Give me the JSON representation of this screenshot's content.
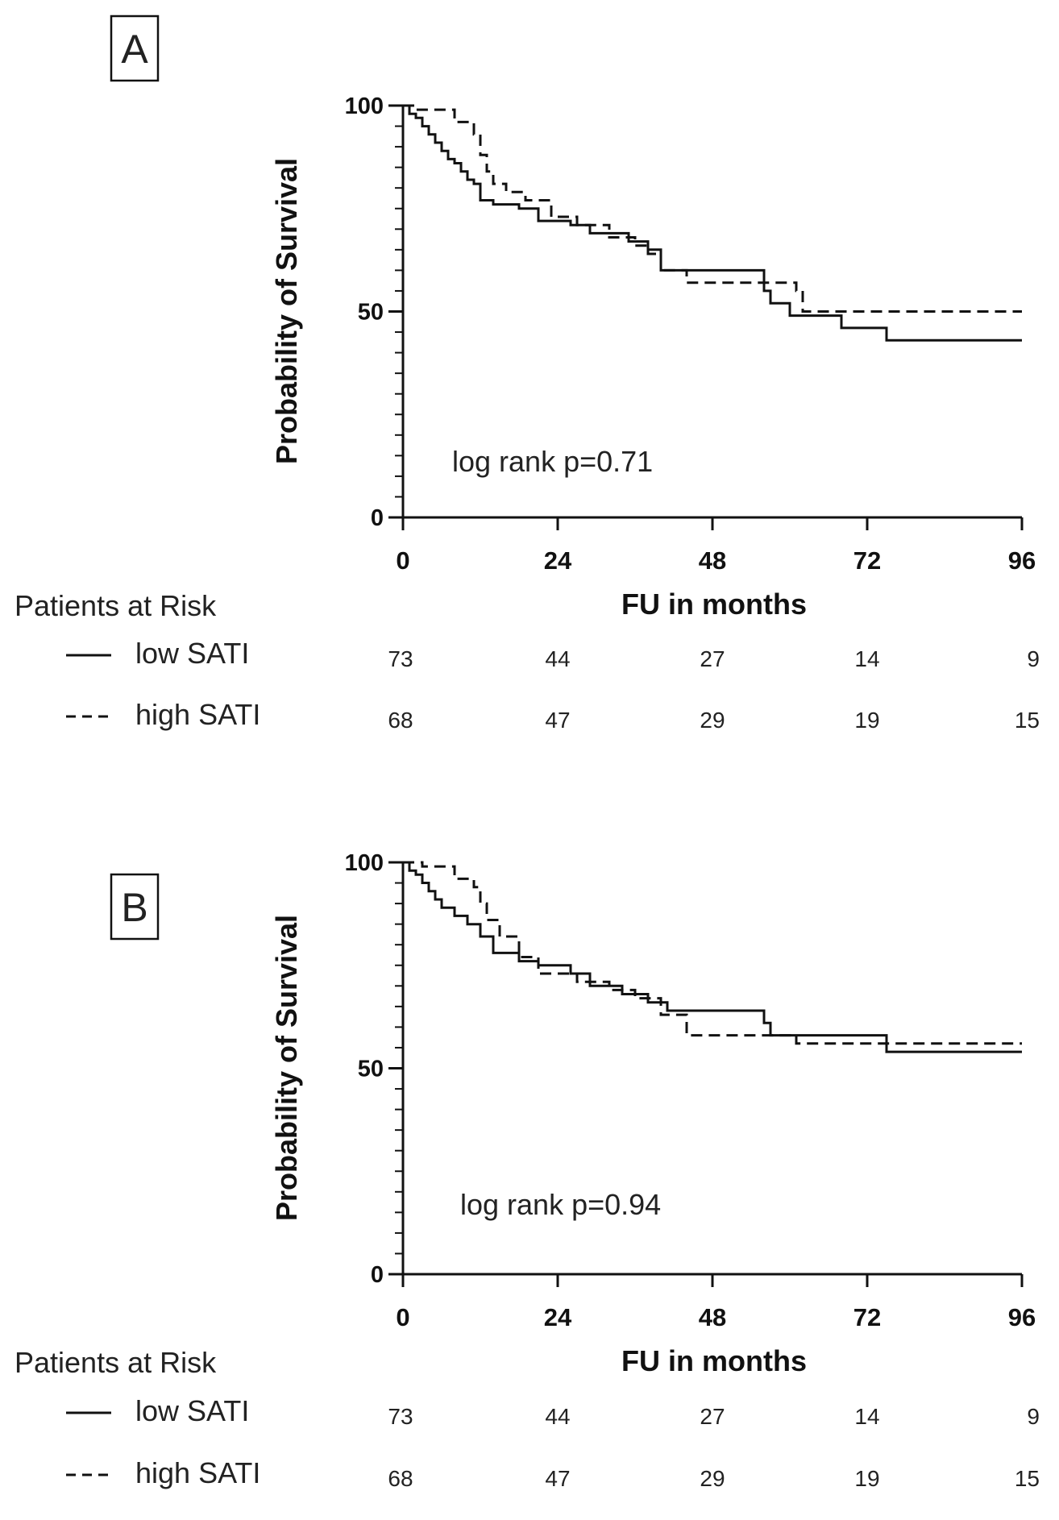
{
  "chart_data": [
    {
      "type": "line",
      "subtype": "kaplan-meier",
      "panel_label": "A",
      "ylabel": "Probability of Survival",
      "xlabel": "FU in months",
      "xlim": [
        0,
        96
      ],
      "ylim": [
        0,
        100
      ],
      "x_ticks": [
        0,
        24,
        48,
        72,
        96
      ],
      "y_ticks": [
        0,
        50,
        100
      ],
      "annotation": "log rank p=0.71",
      "risk_table_title": "Patients at Risk",
      "series": [
        {
          "name": "low SATI",
          "style": "solid",
          "x": [
            0,
            1,
            2,
            3,
            4,
            5,
            6,
            7,
            8,
            9,
            10,
            11,
            12,
            14,
            18,
            21,
            26,
            29,
            35,
            38,
            40,
            56,
            57,
            60,
            68,
            75,
            96
          ],
          "y": [
            100,
            98,
            97,
            95,
            93,
            91,
            89,
            87,
            86,
            84,
            82,
            81,
            77,
            76,
            75,
            72,
            71,
            69,
            67,
            65,
            60,
            55,
            52,
            49,
            46,
            43,
            43
          ]
        },
        {
          "name": "high SATI",
          "style": "dashed",
          "x": [
            0,
            2,
            4,
            8,
            11,
            12,
            13,
            14,
            16,
            19,
            23,
            27,
            32,
            36,
            38,
            40,
            44,
            61,
            62,
            96
          ],
          "y": [
            100,
            99,
            99,
            96,
            93,
            88,
            84,
            81,
            79,
            77,
            73,
            71,
            68,
            66,
            64,
            60,
            57,
            55,
            50,
            50
          ]
        }
      ],
      "at_risk": {
        "times": [
          0,
          24,
          48,
          72,
          96
        ],
        "rows": [
          {
            "label": "low SATI",
            "counts": [
              "73",
              "44",
              "27",
              "14",
              "9"
            ]
          },
          {
            "label": "high SATI",
            "counts": [
              "68",
              "47",
              "29",
              "19",
              "15"
            ]
          }
        ]
      }
    },
    {
      "type": "line",
      "subtype": "kaplan-meier",
      "panel_label": "B",
      "ylabel": "Probability of Survival",
      "xlabel": "FU in months",
      "xlim": [
        0,
        96
      ],
      "ylim": [
        0,
        100
      ],
      "x_ticks": [
        0,
        24,
        48,
        72,
        96
      ],
      "y_ticks": [
        0,
        50,
        100
      ],
      "annotation": "log rank p=0.94",
      "risk_table_title": "Patients at Risk",
      "series": [
        {
          "name": "low SATI",
          "style": "solid",
          "x": [
            0,
            1,
            2,
            3,
            4,
            5,
            6,
            8,
            10,
            12,
            14,
            18,
            21,
            26,
            29,
            34,
            38,
            41,
            56,
            57,
            75,
            96
          ],
          "y": [
            100,
            98,
            97,
            95,
            93,
            91,
            89,
            87,
            85,
            82,
            78,
            76,
            75,
            73,
            70,
            68,
            66,
            64,
            61,
            58,
            54,
            54
          ]
        },
        {
          "name": "high SATI",
          "style": "dashed",
          "x": [
            0,
            3,
            8,
            11,
            12,
            13,
            15,
            18,
            21,
            27,
            32,
            36,
            40,
            44,
            57,
            61,
            75,
            96
          ],
          "y": [
            100,
            99,
            96,
            94,
            90,
            86,
            82,
            77,
            73,
            71,
            69,
            67,
            63,
            58,
            58,
            56,
            56,
            56
          ]
        }
      ],
      "at_risk": {
        "times": [
          0,
          24,
          48,
          72,
          96
        ],
        "rows": [
          {
            "label": "low SATI",
            "counts": [
              "73",
              "44",
              "27",
              "14",
              "9"
            ]
          },
          {
            "label": "high SATI",
            "counts": [
              "68",
              "47",
              "29",
              "19",
              "15"
            ]
          }
        ]
      }
    }
  ]
}
